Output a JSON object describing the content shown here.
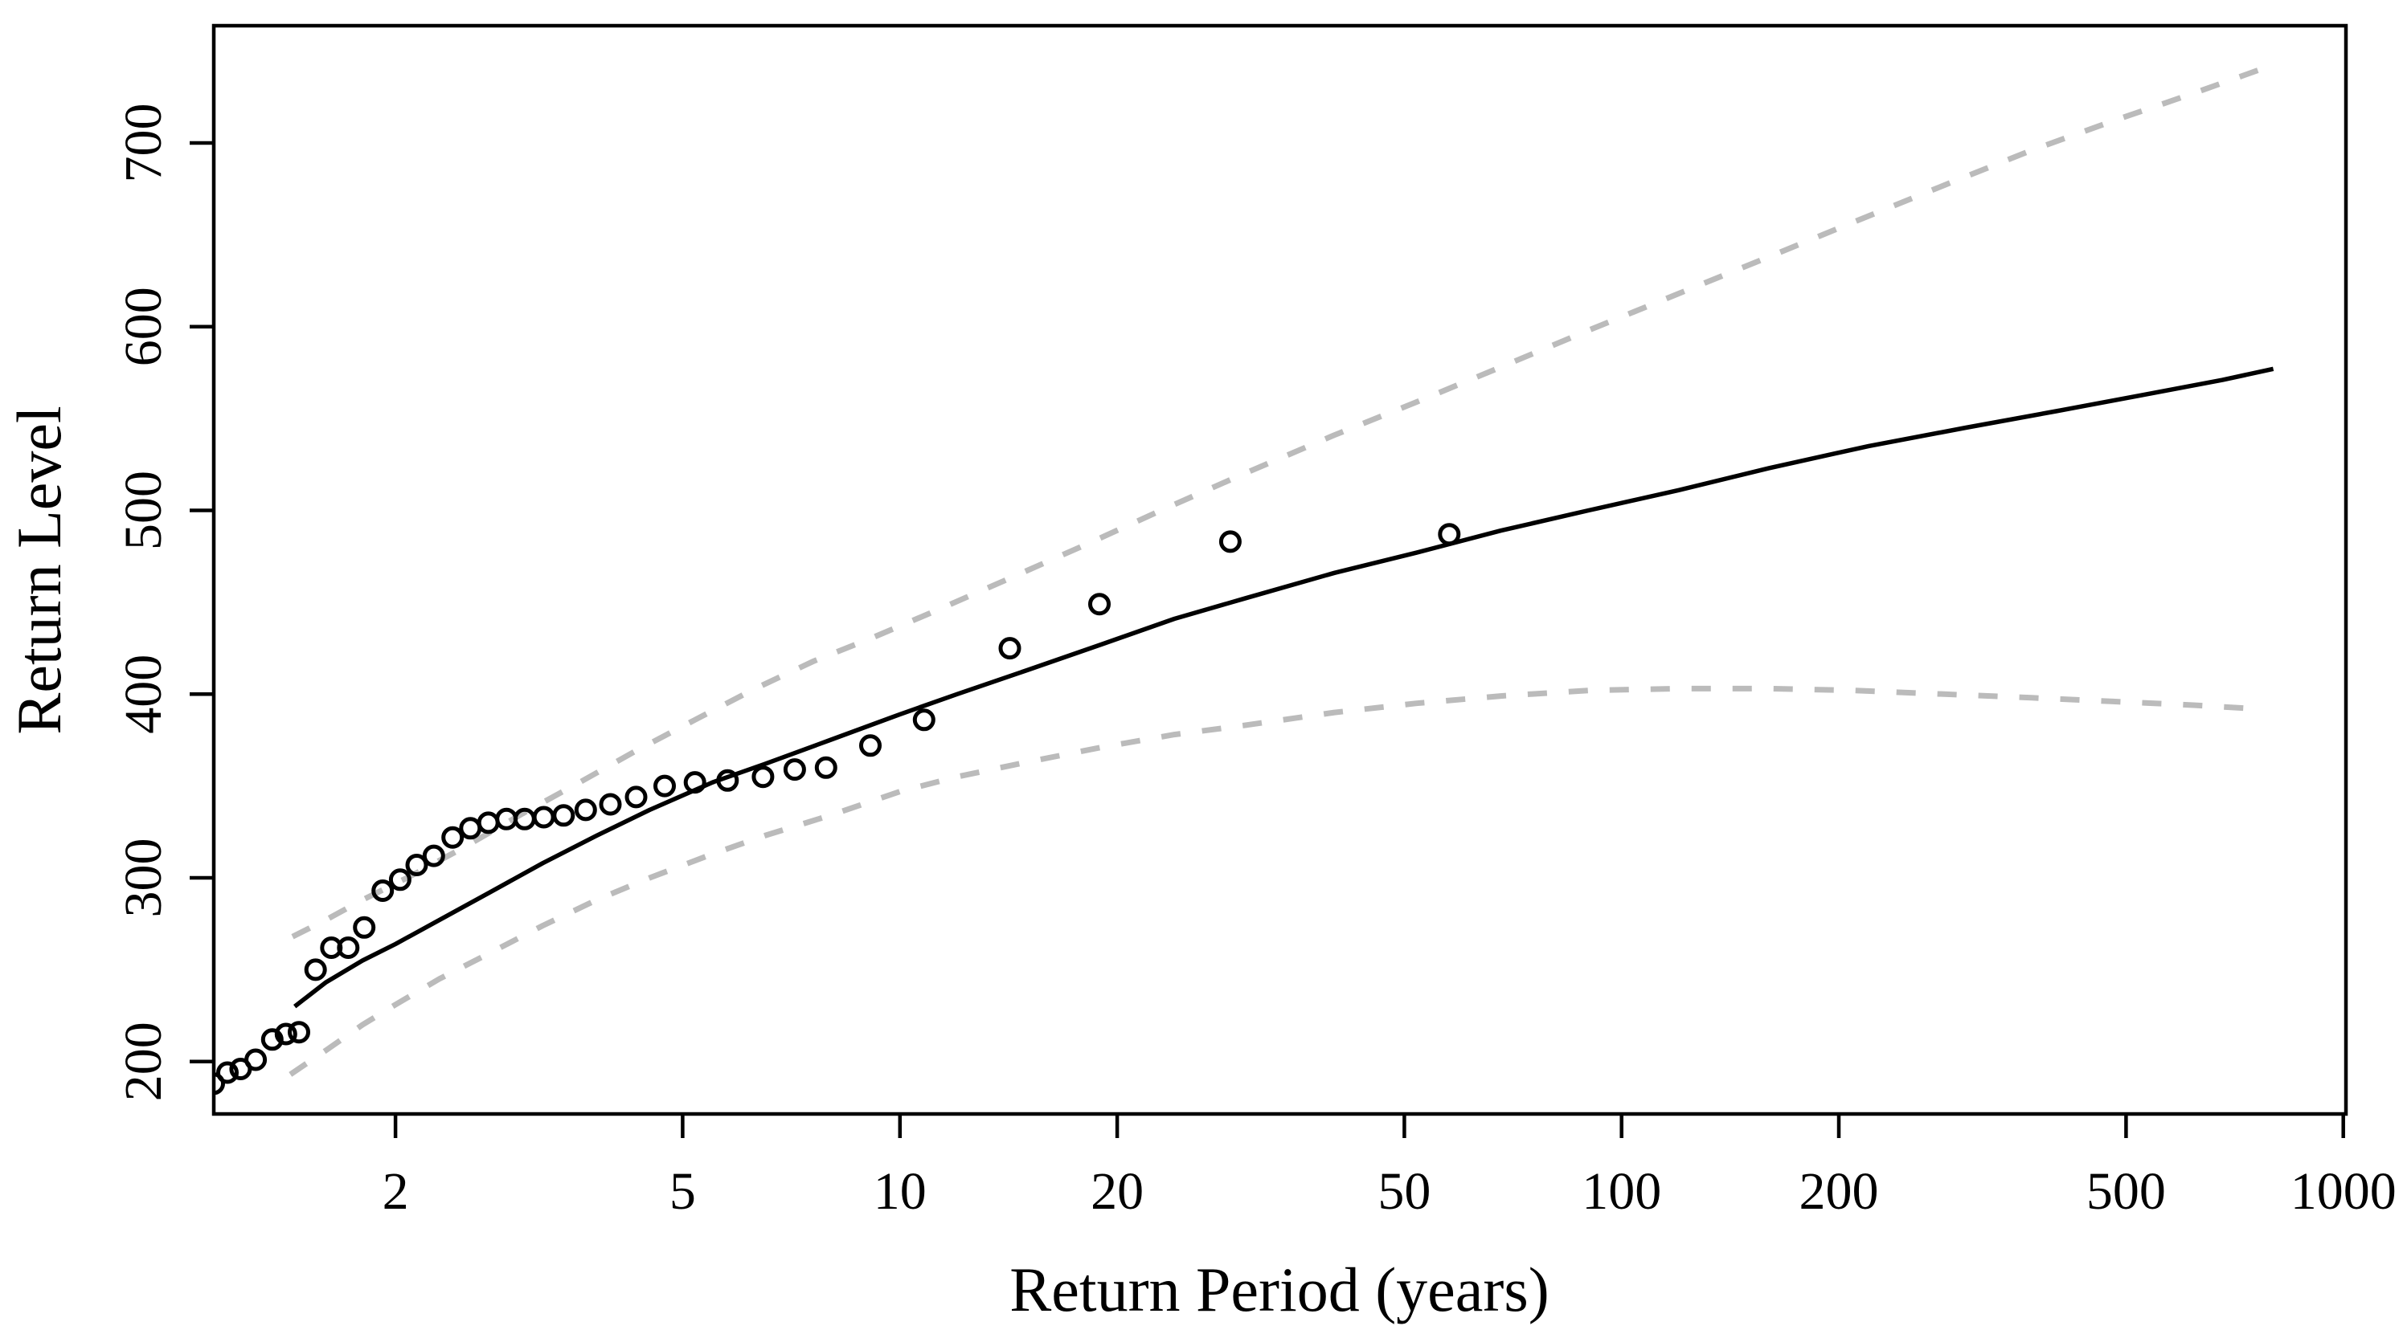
{
  "figure": {
    "background": "#ffffff",
    "title": ""
  },
  "chart_data": {
    "type": "line",
    "subtype": "return-level-plot",
    "title": "",
    "xlabel": "Return Period (years)",
    "ylabel": "Return Level",
    "x_scale": "log10",
    "grid": "off",
    "legend": "none",
    "x_ticks": [
      2,
      5,
      10,
      20,
      50,
      100,
      200,
      500,
      1000
    ],
    "y_ticks": [
      200,
      300,
      400,
      500,
      600,
      700
    ],
    "xlim_years": [
      1.12,
      1008.6
    ],
    "ylim": [
      171.5,
      763.8
    ],
    "colors": {
      "fitted_line": "#000000",
      "confidence_band": "#bbbbbb",
      "points_stroke": "#000000",
      "axis": "#000000",
      "background": "#ffffff"
    },
    "series": [
      {
        "name": "empirical-return-levels",
        "style": "open-circles",
        "points": [
          [
            1.12,
            188
          ],
          [
            1.17,
            194
          ],
          [
            1.22,
            196
          ],
          [
            1.28,
            201
          ],
          [
            1.35,
            212
          ],
          [
            1.41,
            215
          ],
          [
            1.47,
            216
          ],
          [
            1.55,
            250
          ],
          [
            1.63,
            262
          ],
          [
            1.72,
            262
          ],
          [
            1.81,
            273
          ],
          [
            1.92,
            293
          ],
          [
            2.03,
            299
          ],
          [
            2.14,
            307
          ],
          [
            2.26,
            312
          ],
          [
            2.4,
            322
          ],
          [
            2.54,
            327
          ],
          [
            2.69,
            330
          ],
          [
            2.85,
            332
          ],
          [
            3.02,
            332
          ],
          [
            3.21,
            333
          ],
          [
            3.42,
            334
          ],
          [
            3.67,
            337
          ],
          [
            3.97,
            340
          ],
          [
            4.31,
            344
          ],
          [
            4.72,
            350
          ],
          [
            5.2,
            352
          ],
          [
            5.77,
            353
          ],
          [
            6.46,
            355
          ],
          [
            7.15,
            359
          ],
          [
            7.9,
            360
          ],
          [
            9.1,
            372
          ],
          [
            10.8,
            386
          ],
          [
            14.2,
            425
          ],
          [
            18.9,
            449
          ],
          [
            28.7,
            483
          ],
          [
            57.7,
            487
          ]
        ]
      },
      {
        "name": "fitted-return-level-curve",
        "style": "solid-line",
        "points": [
          [
            1.45,
            230
          ],
          [
            1.6,
            243
          ],
          [
            1.8,
            255
          ],
          [
            2.0,
            264
          ],
          [
            2.3,
            277
          ],
          [
            2.7,
            292
          ],
          [
            3.2,
            308
          ],
          [
            3.8,
            323
          ],
          [
            4.5,
            337
          ],
          [
            5.5,
            352
          ],
          [
            6.5,
            362
          ],
          [
            8,
            375
          ],
          [
            10,
            389
          ],
          [
            12,
            400
          ],
          [
            15,
            413
          ],
          [
            19,
            427
          ],
          [
            24,
            441
          ],
          [
            30,
            452
          ],
          [
            40,
            466
          ],
          [
            52,
            477
          ],
          [
            68,
            489
          ],
          [
            90,
            500
          ],
          [
            120,
            511
          ],
          [
            160,
            523
          ],
          [
            220,
            535
          ],
          [
            300,
            545
          ],
          [
            400,
            554
          ],
          [
            530,
            563
          ],
          [
            680,
            571
          ],
          [
            800,
            577
          ]
        ]
      },
      {
        "name": "confidence-upper",
        "style": "dashed-line",
        "points": [
          [
            1.44,
            268
          ],
          [
            1.6,
            277
          ],
          [
            1.8,
            288
          ],
          [
            2.1,
            301
          ],
          [
            2.5,
            317
          ],
          [
            3.0,
            335
          ],
          [
            3.6,
            352
          ],
          [
            4.3,
            369
          ],
          [
            5.2,
            386
          ],
          [
            6.3,
            403
          ],
          [
            7.6,
            418
          ],
          [
            9.2,
            431
          ],
          [
            11,
            444
          ],
          [
            14,
            462
          ],
          [
            18,
            481
          ],
          [
            23,
            500
          ],
          [
            30,
            520
          ],
          [
            40,
            541
          ],
          [
            52,
            559
          ],
          [
            68,
            578
          ],
          [
            90,
            598
          ],
          [
            120,
            618
          ],
          [
            160,
            638
          ],
          [
            210,
            657
          ],
          [
            280,
            677
          ],
          [
            370,
            696
          ],
          [
            480,
            712
          ],
          [
            620,
            727
          ],
          [
            780,
            741
          ]
        ]
      },
      {
        "name": "confidence-lower",
        "style": "dashed-line",
        "points": [
          [
            1.43,
            193
          ],
          [
            1.6,
            206
          ],
          [
            1.8,
            220
          ],
          [
            2.0,
            231
          ],
          [
            2.3,
            245
          ],
          [
            2.7,
            259
          ],
          [
            3.2,
            274
          ],
          [
            3.8,
            288
          ],
          [
            4.5,
            300
          ],
          [
            5.5,
            313
          ],
          [
            6.5,
            323
          ],
          [
            8,
            334
          ],
          [
            10,
            347
          ],
          [
            12,
            355
          ],
          [
            15,
            363
          ],
          [
            19,
            371
          ],
          [
            24,
            378
          ],
          [
            30,
            383
          ],
          [
            40,
            390
          ],
          [
            52,
            395
          ],
          [
            68,
            399
          ],
          [
            90,
            402
          ],
          [
            120,
            403
          ],
          [
            160,
            403
          ],
          [
            210,
            402
          ],
          [
            280,
            400
          ],
          [
            370,
            398
          ],
          [
            480,
            396
          ],
          [
            620,
            394
          ],
          [
            760,
            392
          ]
        ]
      }
    ]
  }
}
